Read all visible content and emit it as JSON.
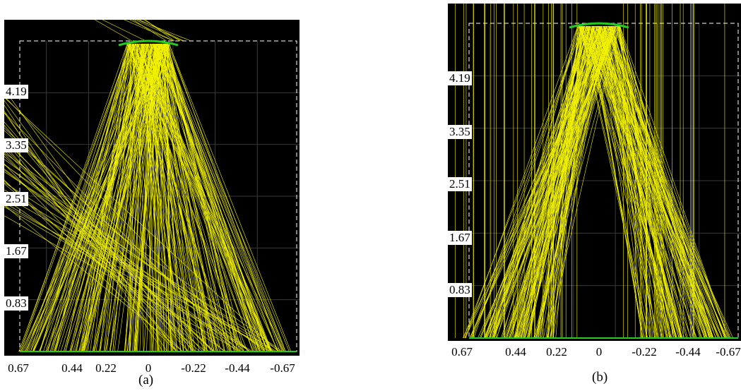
{
  "figure": {
    "panels": [
      {
        "id": "a",
        "caption": "(a)",
        "y_ticks": [
          "4.19",
          "3.35",
          "2.51",
          "1.67",
          "0.83"
        ],
        "x_ticks": [
          "0.67",
          "0.44",
          "0.22",
          "0",
          "-0.22",
          "-0.44",
          "-0.67"
        ],
        "colors": {
          "background": "#000000",
          "rays": "#ffff00",
          "lens": "#22cc22",
          "grid": "#3a3a3a",
          "frame": "#ffffff"
        }
      },
      {
        "id": "b",
        "caption": "(b)",
        "y_ticks": [
          "4.19",
          "3.35",
          "2.51",
          "1.67",
          "0.83"
        ],
        "x_ticks": [
          "0.67",
          "0.44",
          "0.22",
          "0",
          "-0.22",
          "-0.44",
          "-0.67"
        ],
        "colors": {
          "background": "#000000",
          "rays": "#ffff00",
          "lens": "#22cc22",
          "grid": "#3a3a3a",
          "frame": "#ffffff"
        }
      }
    ]
  }
}
